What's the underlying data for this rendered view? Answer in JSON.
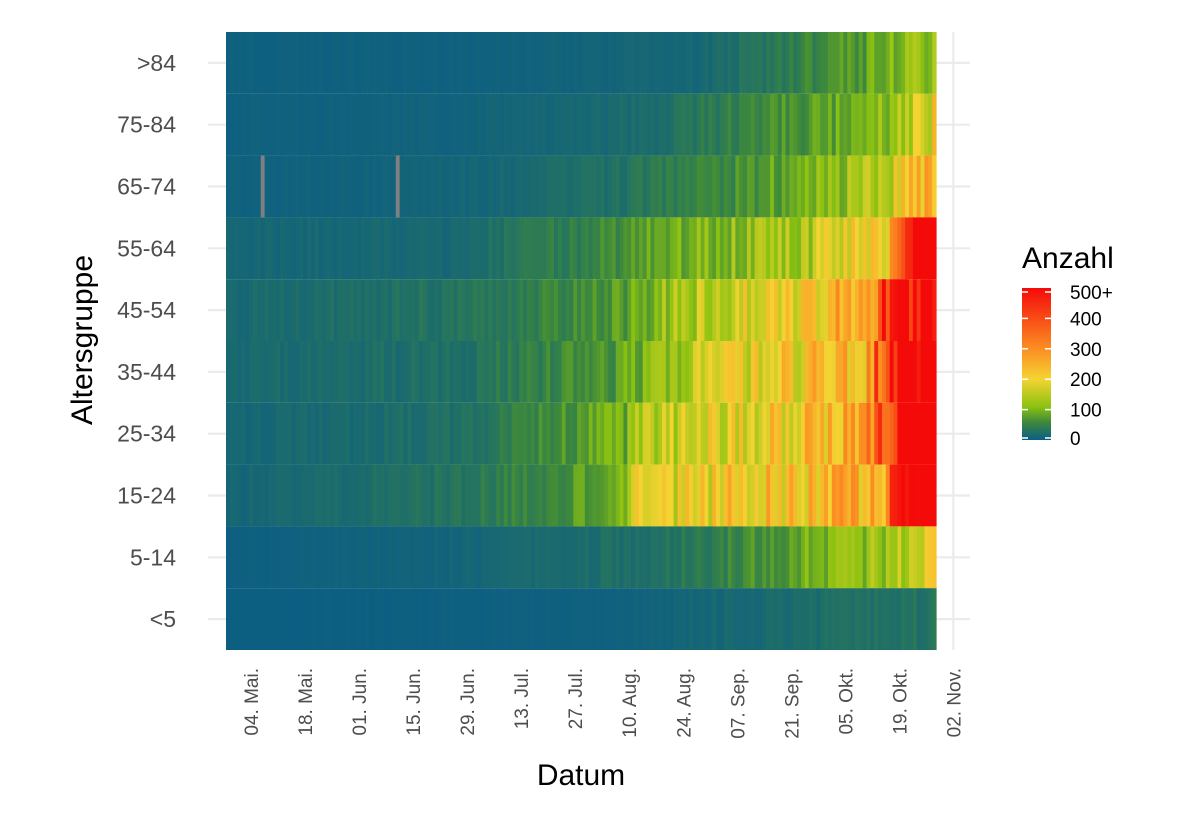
{
  "chart_data": {
    "type": "heatmap",
    "xlabel": "Datum",
    "ylabel": "Altersgruppe",
    "x_tick_labels": [
      "04. Mai.",
      "18. Mai.",
      "01. Jun.",
      "15. Jun.",
      "29. Jun.",
      "13. Jul.",
      "27. Jul.",
      "10. Aug.",
      "24. Aug.",
      "07. Sep.",
      "21. Sep.",
      "05. Okt.",
      "19. Okt.",
      "02. Nov."
    ],
    "x_range": [
      "2020-04-28",
      "2020-10-28"
    ],
    "age_groups": [
      ">84",
      "75-84",
      "65-74",
      "55-64",
      "45-54",
      "35-44",
      "25-34",
      "15-24",
      "5-14",
      "<5"
    ],
    "legend": {
      "title": "Anzahl",
      "tick_labels": [
        "500+",
        "400",
        "300",
        "200",
        "100",
        "0"
      ],
      "range": [
        0,
        500
      ],
      "placement": "right"
    },
    "color_scale": [
      {
        "value": 0,
        "color": "#0b5d85"
      },
      {
        "value": 60,
        "color": "#3f8a3a"
      },
      {
        "value": 110,
        "color": "#8cc211"
      },
      {
        "value": 200,
        "color": "#f4d432"
      },
      {
        "value": 300,
        "color": "#fb8e22"
      },
      {
        "value": 500,
        "color": "#f50a0a"
      }
    ],
    "missing_color": "#808080",
    "segments_note": "approximate daily case counts, piecewise-linear by date (day offset from x_range start)",
    "series": [
      {
        "name": ">84",
        "segments": [
          [
            0,
            5
          ],
          [
            60,
            5
          ],
          [
            120,
            12
          ],
          [
            140,
            35
          ],
          [
            165,
            80
          ],
          [
            183,
            130
          ]
        ]
      },
      {
        "name": "75-84",
        "segments": [
          [
            0,
            5
          ],
          [
            60,
            8
          ],
          [
            110,
            20
          ],
          [
            130,
            45
          ],
          [
            160,
            90
          ],
          [
            175,
            130
          ],
          [
            183,
            200
          ]
        ]
      },
      {
        "name": "65-74",
        "segments": [
          [
            0,
            5
          ],
          [
            60,
            10
          ],
          [
            100,
            25
          ],
          [
            130,
            60
          ],
          [
            155,
            110
          ],
          [
            170,
            140
          ],
          [
            183,
            290
          ]
        ]
      },
      {
        "name": "55-64",
        "segments": [
          [
            0,
            12
          ],
          [
            60,
            15
          ],
          [
            100,
            60
          ],
          [
            125,
            110
          ],
          [
            150,
            140
          ],
          [
            170,
            220
          ],
          [
            176,
            420
          ],
          [
            183,
            600
          ]
        ]
      },
      {
        "name": "45-54",
        "segments": [
          [
            0,
            15
          ],
          [
            60,
            30
          ],
          [
            100,
            70
          ],
          [
            125,
            160
          ],
          [
            150,
            200
          ],
          [
            165,
            280
          ],
          [
            175,
            550
          ],
          [
            183,
            650
          ]
        ]
      },
      {
        "name": "35-44",
        "segments": [
          [
            0,
            15
          ],
          [
            60,
            25
          ],
          [
            100,
            70
          ],
          [
            125,
            170
          ],
          [
            150,
            210
          ],
          [
            165,
            260
          ],
          [
            175,
            560
          ],
          [
            183,
            700
          ]
        ]
      },
      {
        "name": "25-34",
        "segments": [
          [
            0,
            12
          ],
          [
            60,
            25
          ],
          [
            103,
            90
          ],
          [
            105,
            140
          ],
          [
            125,
            180
          ],
          [
            150,
            220
          ],
          [
            165,
            270
          ],
          [
            175,
            560
          ],
          [
            183,
            720
          ]
        ]
      },
      {
        "name": "15-24",
        "segments": [
          [
            0,
            12
          ],
          [
            60,
            30
          ],
          [
            103,
            90
          ],
          [
            105,
            170
          ],
          [
            130,
            210
          ],
          [
            150,
            230
          ],
          [
            170,
            280
          ],
          [
            175,
            580
          ],
          [
            183,
            750
          ]
        ]
      },
      {
        "name": "5-14",
        "segments": [
          [
            0,
            3
          ],
          [
            60,
            10
          ],
          [
            110,
            25
          ],
          [
            135,
            60
          ],
          [
            160,
            110
          ],
          [
            175,
            140
          ],
          [
            183,
            200
          ]
        ]
      },
      {
        "name": "<5",
        "segments": [
          [
            0,
            2
          ],
          [
            100,
            5
          ],
          [
            140,
            18
          ],
          [
            183,
            30
          ]
        ]
      }
    ],
    "missing_cells": [
      {
        "age_group": "65-74",
        "day": 9
      },
      {
        "age_group": "65-74",
        "day": 44
      }
    ]
  }
}
